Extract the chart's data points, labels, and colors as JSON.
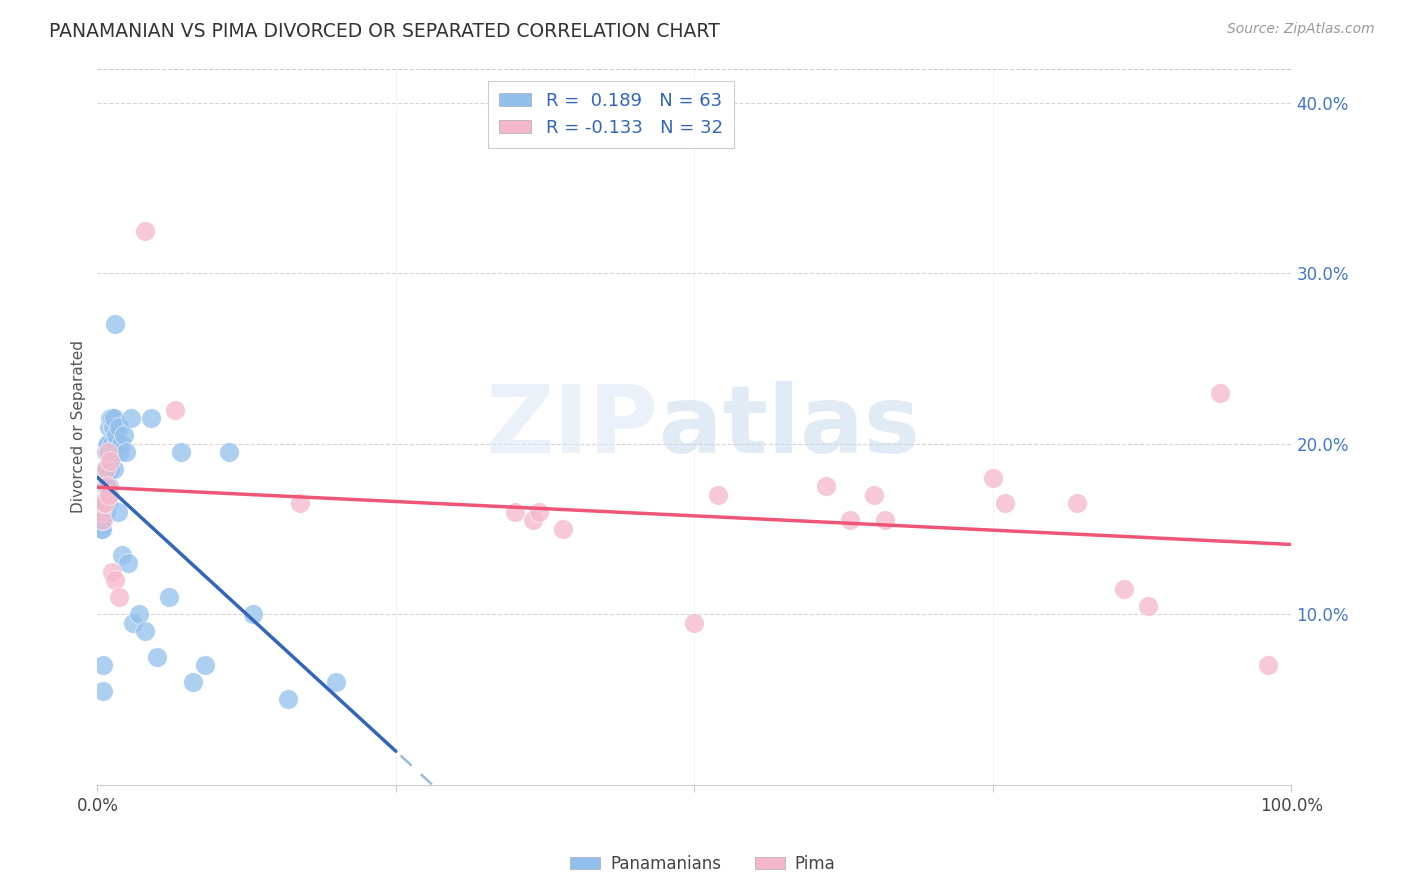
{
  "title": "PANAMANIAN VS PIMA DIVORCED OR SEPARATED CORRELATION CHART",
  "source": "Source: ZipAtlas.com",
  "ylabel": "Divorced or Separated",
  "watermark_zip": "ZIP",
  "watermark_atlas": "atlas",
  "legend_label1": "R =  0.189   N = 63",
  "legend_label2": "R = -0.133   N = 32",
  "legend_label_pan": "Panamanians",
  "legend_label_pima": "Pima",
  "blue_color": "#92c0ec",
  "pink_color": "#f5b8cb",
  "trend_blue": "#3366bb",
  "trend_pink": "#ee5577",
  "trend_dashed_blue": "#99bbdd",
  "xlim": [
    0.0,
    1.0
  ],
  "ylim": [
    0.0,
    0.42
  ],
  "yticks": [
    0.1,
    0.2,
    0.3,
    0.4
  ],
  "ytick_labels": [
    "10.0%",
    "20.0%",
    "30.0%",
    "40.0%"
  ],
  "pan_x": [
    0.001,
    0.002,
    0.002,
    0.003,
    0.003,
    0.003,
    0.004,
    0.004,
    0.004,
    0.004,
    0.005,
    0.005,
    0.005,
    0.005,
    0.006,
    0.006,
    0.006,
    0.007,
    0.007,
    0.007,
    0.008,
    0.008,
    0.008,
    0.009,
    0.009,
    0.009,
    0.01,
    0.01,
    0.01,
    0.011,
    0.011,
    0.012,
    0.012,
    0.013,
    0.013,
    0.014,
    0.014,
    0.015,
    0.015,
    0.016,
    0.016,
    0.017,
    0.018,
    0.019,
    0.02,
    0.021,
    0.022,
    0.024,
    0.026,
    0.028,
    0.03,
    0.035,
    0.04,
    0.045,
    0.05,
    0.06,
    0.07,
    0.08,
    0.09,
    0.11,
    0.13,
    0.16,
    0.2
  ],
  "pan_y": [
    0.155,
    0.16,
    0.165,
    0.155,
    0.15,
    0.165,
    0.16,
    0.165,
    0.155,
    0.15,
    0.055,
    0.07,
    0.155,
    0.16,
    0.175,
    0.185,
    0.165,
    0.16,
    0.195,
    0.175,
    0.185,
    0.2,
    0.175,
    0.165,
    0.185,
    0.2,
    0.195,
    0.21,
    0.175,
    0.215,
    0.185,
    0.2,
    0.215,
    0.195,
    0.21,
    0.215,
    0.185,
    0.27,
    0.195,
    0.2,
    0.205,
    0.16,
    0.21,
    0.195,
    0.2,
    0.135,
    0.205,
    0.195,
    0.13,
    0.215,
    0.095,
    0.1,
    0.09,
    0.215,
    0.075,
    0.11,
    0.195,
    0.06,
    0.07,
    0.195,
    0.1,
    0.05,
    0.06
  ],
  "pima_x": [
    0.003,
    0.004,
    0.005,
    0.006,
    0.007,
    0.008,
    0.009,
    0.01,
    0.011,
    0.012,
    0.015,
    0.018,
    0.04,
    0.065,
    0.17,
    0.35,
    0.365,
    0.37,
    0.39,
    0.5,
    0.52,
    0.61,
    0.63,
    0.65,
    0.66,
    0.75,
    0.76,
    0.82,
    0.86,
    0.88,
    0.94,
    0.98
  ],
  "pima_y": [
    0.16,
    0.155,
    0.165,
    0.165,
    0.185,
    0.175,
    0.195,
    0.17,
    0.19,
    0.125,
    0.12,
    0.11,
    0.325,
    0.22,
    0.165,
    0.16,
    0.155,
    0.16,
    0.15,
    0.095,
    0.17,
    0.175,
    0.155,
    0.17,
    0.155,
    0.18,
    0.165,
    0.165,
    0.115,
    0.105,
    0.23,
    0.07
  ],
  "R_pan": 0.189,
  "N_pan": 63,
  "R_pima": -0.133,
  "N_pima": 32
}
